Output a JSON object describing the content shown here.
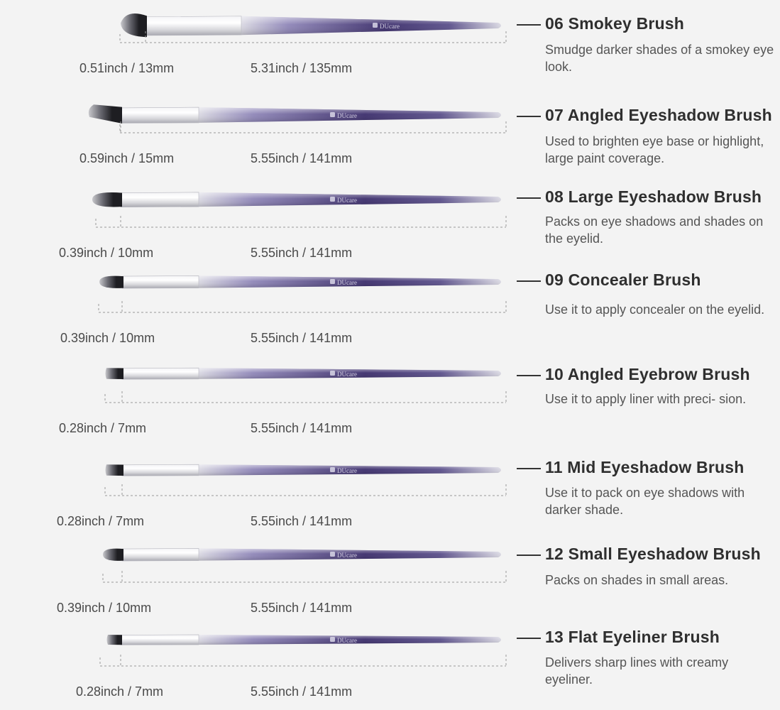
{
  "brand_text": "DUcare",
  "colors": {
    "background": "#f3f3f3",
    "handle_dark": "#3b2d6b",
    "handle_mid": "#8f86b8",
    "handle_light": "#d9d8e2",
    "ferrule": "#d8d8dc",
    "bristle_dark": "#1e1e22",
    "bristle_light": "#c8c8cc",
    "dim_line": "#9a9a9a",
    "title_text": "#2f2f2f",
    "desc_text": "#555555"
  },
  "brushes": [
    {
      "title": "06 Smokey Brush",
      "description": "Smudge darker shades of a smokey eye look.",
      "head_size": "0.51inch / 13mm",
      "handle_size": "5.31inch / 135mm",
      "head_shape": "dome"
    },
    {
      "title": "07 Angled Eyeshadow Brush",
      "description": "Used to brighten eye base or highlight, large paint coverage.",
      "head_size": "0.59inch / 15mm",
      "handle_size": "5.55inch / 141mm",
      "head_shape": "angled"
    },
    {
      "title": "08 Large Eyeshadow Brush",
      "description": "Packs on eye shadows and shades on the eyelid.",
      "head_size": "0.39inch / 10mm",
      "handle_size": "5.55inch / 141mm",
      "head_shape": "round"
    },
    {
      "title": "09 Concealer Brush",
      "description": "Use it to apply concealer on the eyelid.",
      "head_size": "0.39inch / 10mm",
      "handle_size": "5.55inch / 141mm",
      "head_shape": "round"
    },
    {
      "title": "10 Angled Eyebrow Brush",
      "description": "Use it to apply liner with preci- sion.",
      "head_size": "0.28inch / 7mm",
      "handle_size": "5.55inch / 141mm",
      "head_shape": "flat"
    },
    {
      "title": "11 Mid Eyeshadow Brush",
      "description": "Use it to pack on eye shadows with darker shade.",
      "head_size": "0.28inch / 7mm",
      "handle_size": "5.55inch / 141mm",
      "head_shape": "flat"
    },
    {
      "title": "12 Small Eyeshadow Brush",
      "description": "Packs on shades in small areas.",
      "head_size": "0.39inch / 10mm",
      "handle_size": "5.55inch / 141mm",
      "head_shape": "round"
    },
    {
      "title": "13 Flat Eyeliner Brush",
      "description": "Delivers sharp lines with creamy eyeliner.",
      "head_size": "0.28inch / 7mm",
      "handle_size": "5.55inch / 141mm",
      "head_shape": "flat"
    }
  ]
}
